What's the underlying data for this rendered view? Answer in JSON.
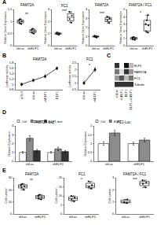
{
  "chart_data": [
    {
      "type": "box",
      "label": "A",
      "title": "FAM72A",
      "categories": [
        "shLuc",
        "shELF1"
      ],
      "values": [
        [
          1.0,
          0.9,
          1.1,
          0.95,
          1.05
        ],
        [
          0.6,
          0.55,
          0.7,
          0.5,
          0.65
        ]
      ],
      "ylim": [
        0,
        1.5
      ],
      "yticks": [
        0,
        0.5,
        1,
        1.5
      ],
      "ylabel": "Relative Gene Expression",
      "annotations": [
        {
          "text": "**",
          "x": 0.5,
          "y": 1.3
        }
      ]
    },
    {
      "type": "box",
      "title": "FC1",
      "categories": [
        "shLuc",
        "shELF1"
      ],
      "values": [
        [
          1.0,
          0.9,
          1.1,
          1.0
        ],
        [
          2.2,
          2.5,
          1.9,
          2.8
        ]
      ],
      "ylim": [
        0,
        3
      ],
      "yticks": [
        0,
        1,
        2,
        3
      ],
      "ylabel": "Relative Gene Expression",
      "annotations": [
        {
          "text": "***",
          "x": 0.5,
          "y": 2.9
        }
      ]
    },
    {
      "type": "box",
      "title": "FAM72A",
      "categories": [
        "shLuc",
        "shELF1"
      ],
      "values": [
        [
          1.0,
          1.1,
          0.9,
          1.0
        ],
        [
          2.8,
          3.2,
          2.5,
          3.0
        ]
      ],
      "ylim": [
        0,
        4
      ],
      "yticks": [
        0,
        1,
        2,
        3,
        4
      ],
      "ylabel": "Relative Gene Expression",
      "annotations": [
        {
          "text": "***",
          "x": 0.5,
          "y": 3.6
        }
      ]
    },
    {
      "type": "box",
      "title": "FAM72A / FC1",
      "categories": [
        "shLuc",
        "shELF1"
      ],
      "values": [
        [
          1.0,
          0.8,
          1.2,
          0.9,
          1.1
        ],
        [
          2.0,
          3.5,
          2.8,
          4.2,
          1.8,
          3.0
        ]
      ],
      "ylim": [
        0,
        5
      ],
      "yticks": [
        0,
        1,
        2,
        3,
        4,
        5
      ],
      "ylabel": "Relative Gene Expression",
      "annotations": [
        {
          "text": "*",
          "x": 0.5,
          "y": 4.6
        }
      ]
    },
    {
      "type": "line",
      "label": "B",
      "title": "FAM72A",
      "categories": [
        "pGL3",
        "shLuc",
        "shELF1",
        "ELF1"
      ],
      "values": [
        1.0,
        1.15,
        1.3,
        1.6
      ],
      "errors": [
        0.05,
        0.05,
        0.06,
        0.05
      ],
      "ylim": [
        0.8,
        1.8
      ],
      "yticks": [
        0.8,
        1,
        1.2,
        1.4,
        1.6,
        1.8
      ],
      "ylabel": "Luciferase activity"
    },
    {
      "type": "line",
      "title": "FC1",
      "categories": [
        "shLuc",
        "shELF1"
      ],
      "values": [
        1.0,
        2.0
      ],
      "errors": [
        0.1,
        0.15
      ],
      "ylim": [
        0.5,
        2.5
      ],
      "yticks": [
        0.5,
        1,
        1.5,
        2,
        2.5
      ],
      "ylabel": "Luciferase activity",
      "annotations": [
        {
          "text": "*",
          "x": 0.5,
          "y": 2.3
        }
      ]
    },
    {
      "type": "heatmap",
      "label": "C",
      "categories": [
        "shLuc",
        "shELF1",
        "ELF1",
        "ELF1+shELF1"
      ],
      "rows": [
        "ELF1",
        "FAM72A",
        "FC1",
        "Tubulin"
      ],
      "values": [
        [
          0.8,
          0.2,
          0.9,
          0.4
        ],
        [
          0.6,
          0.3,
          0.8,
          0.5
        ],
        [
          0.5,
          0.7,
          0.4,
          0.6
        ],
        [
          0.8,
          0.8,
          0.8,
          0.8
        ]
      ]
    },
    {
      "type": "bar",
      "label": "D",
      "title": "FAM72A-Luc",
      "categories": [
        "shLuc",
        "shELF1"
      ],
      "series": [
        {
          "name": "Ctrl",
          "color": "#ffffff",
          "values": [
            1.0,
            1.0
          ],
          "errors": [
            0.1,
            0.1
          ]
        },
        {
          "name": "ELF1",
          "color": "#8c8c8c",
          "values": [
            2.6,
            1.4
          ],
          "errors": [
            0.3,
            0.2
          ]
        },
        {
          "name": "ELF1 mut",
          "color": "#333333",
          "values": [
            1.2,
            1.1
          ],
          "errors": [
            0.15,
            0.1
          ]
        }
      ],
      "ylim": [
        0,
        4
      ],
      "yticks": [
        0,
        1,
        2,
        3,
        4
      ],
      "ylabel": "Relative Expression"
    },
    {
      "type": "bar",
      "title": "FC1-Luc",
      "categories": [
        "shLuc",
        "shELF1"
      ],
      "series": [
        {
          "name": "Ctrl",
          "color": "#ffffff",
          "values": [
            1.0,
            1.0
          ],
          "errors": [
            0.1,
            0.08
          ]
        },
        {
          "name": "ELF1",
          "color": "#8c8c8c",
          "values": [
            1.6,
            1.2
          ],
          "errors": [
            0.15,
            0.1
          ]
        }
      ],
      "ylim": [
        0,
        2
      ],
      "yticks": [
        0,
        0.5,
        1,
        1.5,
        2
      ],
      "ylabel": "Relative Expression"
    },
    {
      "type": "box",
      "label": "E",
      "title": "FAM72A",
      "categories": [
        "shLuc",
        "shELF1"
      ],
      "values": [
        [
          22,
          25,
          20,
          24,
          23
        ],
        [
          14,
          16,
          12,
          15,
          13
        ]
      ],
      "ylim": [
        0,
        30
      ],
      "yticks": [
        0,
        10,
        20,
        30
      ],
      "ylabel": "Cell number",
      "annotations": [
        {
          "text": "**",
          "x": 0.5,
          "y": 28
        }
      ]
    },
    {
      "type": "box",
      "title": "FC1",
      "categories": [
        "shLuc",
        "shELF1"
      ],
      "values": [
        [
          8,
          10,
          9,
          7
        ],
        [
          15,
          18,
          14,
          16
        ]
      ],
      "ylim": [
        0,
        20
      ],
      "yticks": [
        0,
        5,
        10,
        15,
        20
      ],
      "ylabel": "Cell number",
      "annotations": [
        {
          "text": "*",
          "x": 0.5,
          "y": 19
        }
      ]
    },
    {
      "type": "box",
      "title": "FAM72A / FC1",
      "categories": [
        "shLuc",
        "shELF1"
      ],
      "values": [
        [
          1.0,
          1.2,
          0.9
        ],
        [
          2.5,
          2.8,
          2.2,
          2.6
        ]
      ],
      "ylim": [
        0,
        3
      ],
      "yticks": [
        0,
        1,
        2,
        3
      ],
      "ylabel": "Cell number",
      "annotations": [
        {
          "text": "***",
          "x": 0.5,
          "y": 2.9
        }
      ]
    }
  ]
}
